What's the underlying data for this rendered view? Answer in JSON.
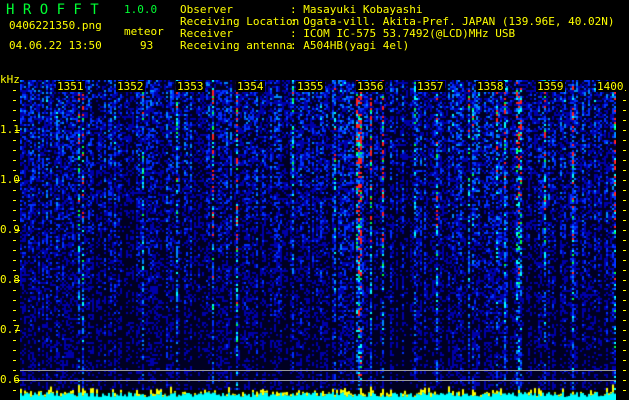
{
  "header": {
    "app_title": "H R O F F T",
    "version": "1.0.0",
    "filename": "0406221350.png",
    "datetime": "04.06.22 13:50",
    "mode_label": "meteor",
    "meteor_count": "93"
  },
  "info": [
    {
      "label": "Observer          ",
      "value": ": Masayuki Kobayashi"
    },
    {
      "label": "Receiving Location",
      "value": ": Ogata-vill. Akita-Pref. JAPAN (139.96E, 40.02N)"
    },
    {
      "label": "Receiver          ",
      "value": ": ICOM IC-575 53.7492(@LCD)MHz USB"
    },
    {
      "label": "Receiving antenna ",
      "value": ": A504HB(yagi 4el)"
    }
  ],
  "chart_data": {
    "type": "heatmap",
    "ylabel": "kHz",
    "ylim": [
      0.56,
      1.2
    ],
    "y_ticks": [
      "1.1",
      "1.0",
      "0.9",
      "0.8",
      "0.7",
      "0.6"
    ],
    "x_ticks": [
      "1351",
      "1352",
      "1353",
      "1354",
      "1355",
      "1356",
      "1357",
      "1358",
      "1359",
      "1400"
    ],
    "colors": {
      "low": "#000033",
      "mid": "#0033ff",
      "high": "#00ffff",
      "peak": "#ff0000",
      "text": "#ffff00",
      "title": "#00ff33",
      "level_bars": "#ffff00",
      "level_base": "#00ffff"
    }
  }
}
